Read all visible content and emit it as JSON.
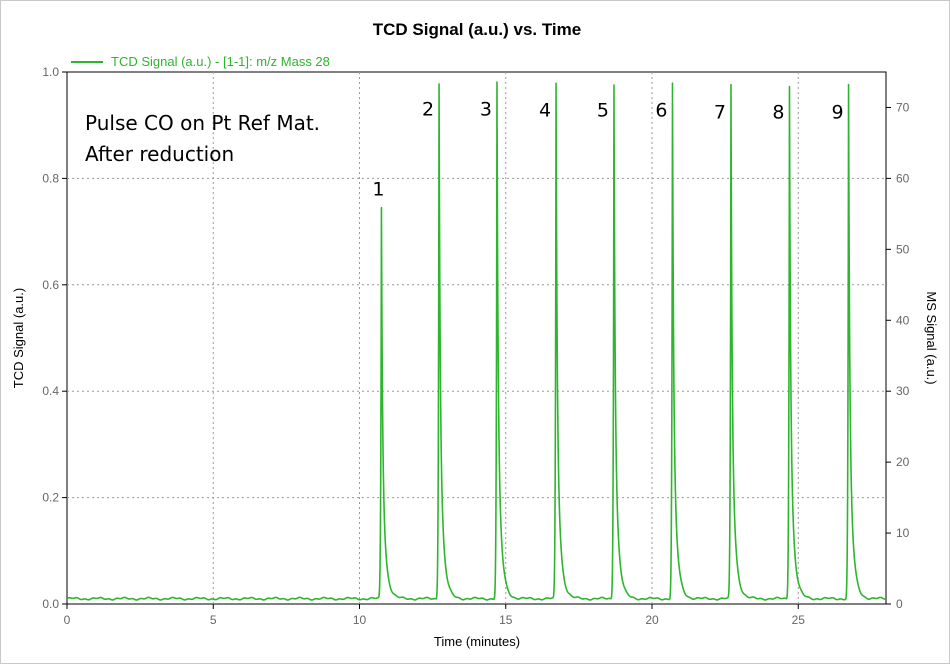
{
  "chart_data": {
    "type": "line",
    "title": "TCD Signal (a.u.) vs. Time",
    "xlabel": "Time (minutes)",
    "ylabel": "TCD Signal (a.u.)",
    "y2label": "MS Signal (a.u.)",
    "xlim": [
      0,
      28
    ],
    "ylim": [
      0,
      1.0
    ],
    "y2lim": [
      0,
      75
    ],
    "x_ticks": [
      0,
      5,
      10,
      15,
      20,
      25
    ],
    "y_ticks": [
      0.0,
      0.2,
      0.4,
      0.6,
      0.8,
      1.0
    ],
    "y_tick_labels": [
      "0.0",
      "0.2",
      "0.4",
      "0.6",
      "0.8",
      "1.0"
    ],
    "y2_ticks": [
      0,
      10,
      20,
      30,
      40,
      50,
      60,
      70
    ],
    "grid": true,
    "legend_position": "top-left",
    "series": [
      {
        "name": "TCD Signal (a.u.) - [1-1]: m/z Mass 28",
        "color": "#2db52d",
        "baseline": 0.01,
        "peaks": [
          {
            "label": "1",
            "time": 10.75,
            "height": 0.745
          },
          {
            "label": "2",
            "time": 12.72,
            "height": 0.98
          },
          {
            "label": "3",
            "time": 14.7,
            "height": 0.98
          },
          {
            "label": "4",
            "time": 16.72,
            "height": 0.978
          },
          {
            "label": "5",
            "time": 18.7,
            "height": 0.978
          },
          {
            "label": "6",
            "time": 20.7,
            "height": 0.978
          },
          {
            "label": "7",
            "time": 22.7,
            "height": 0.975
          },
          {
            "label": "8",
            "time": 24.7,
            "height": 0.975
          },
          {
            "label": "9",
            "time": 26.72,
            "height": 0.975
          }
        ]
      }
    ],
    "annotations": [
      "Pulse CO on Pt Ref Mat.",
      "After reduction"
    ]
  }
}
